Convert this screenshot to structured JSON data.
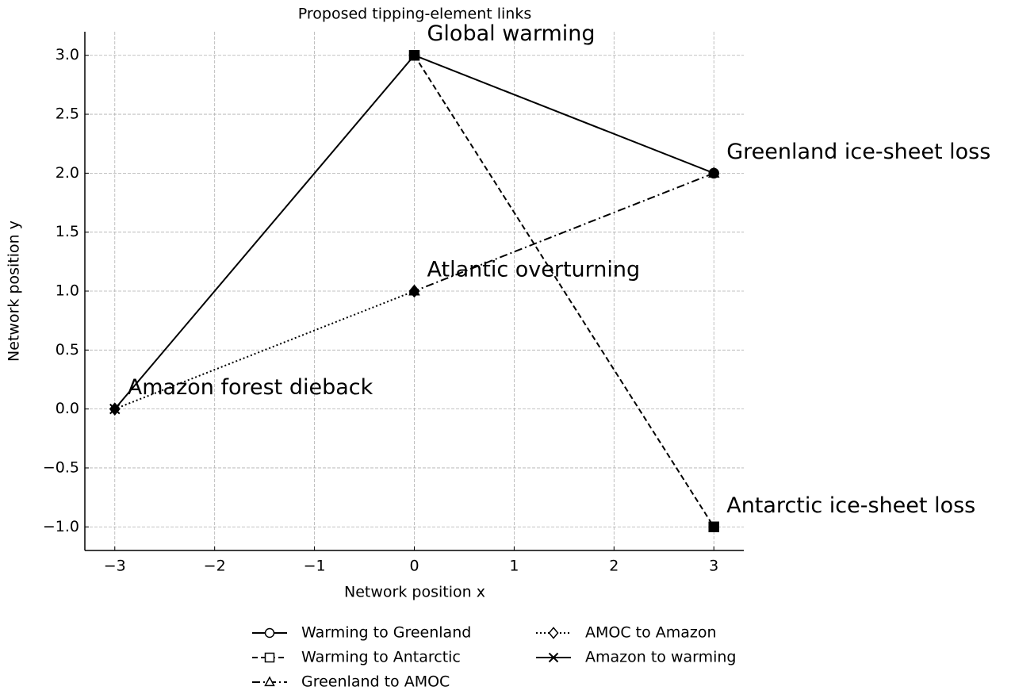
{
  "chart_data": {
    "type": "line",
    "title": "Proposed tipping-element links",
    "x_label": "Network position x",
    "y_label": "Network position y",
    "xlim": [
      -3.3,
      3.3
    ],
    "ylim": [
      -1.2,
      3.2
    ],
    "xticks": [
      {
        "value": -3,
        "label": "−3"
      },
      {
        "value": -2,
        "label": "−2"
      },
      {
        "value": -1,
        "label": "−1"
      },
      0,
      1,
      2,
      3
    ],
    "yticks": [
      {
        "value": -1,
        "label": "−1.0"
      },
      {
        "value": -0.5,
        "label": "−0.5"
      },
      {
        "value": 0,
        "label": "0.0"
      },
      0.5,
      {
        "value": 1,
        "label": "1.0"
      },
      1.5,
      {
        "value": 2,
        "label": "2.0"
      },
      2.5,
      {
        "value": 3,
        "label": "3.0"
      }
    ],
    "grid": true,
    "legend": "bottom",
    "series": [
      {
        "name": "Warming to Greenland",
        "color": "#000000",
        "linestyle": "solid",
        "marker": "o",
        "x": [
          0,
          3
        ],
        "y": [
          3,
          2
        ]
      },
      {
        "name": "Warming to Antarctic",
        "color": "#000000",
        "linestyle": "dashed",
        "marker": "s",
        "x": [
          0,
          3
        ],
        "y": [
          3,
          -1
        ]
      },
      {
        "name": "Greenland to AMOC",
        "color": "#000000",
        "linestyle": "dashdot",
        "marker": "^",
        "x": [
          3,
          0
        ],
        "y": [
          2,
          1
        ]
      },
      {
        "name": "AMOC to Amazon",
        "color": "#000000",
        "linestyle": "dotted",
        "marker": "D",
        "x": [
          0,
          -3
        ],
        "y": [
          1,
          0
        ]
      },
      {
        "name": "Amazon to warming",
        "color": "#000000",
        "linestyle": "solid",
        "marker": "x",
        "x": [
          -3,
          0
        ],
        "y": [
          0,
          3
        ]
      }
    ],
    "nodes": [
      {
        "label": "Global warming",
        "x": 0,
        "y": 3
      },
      {
        "label": "Greenland ice-sheet loss",
        "x": 3,
        "y": 2
      },
      {
        "label": "Atlantic overturning",
        "x": 0,
        "y": 1
      },
      {
        "label": "Amazon forest dieback",
        "x": -3,
        "y": 0
      },
      {
        "label": "Antarctic ice-sheet loss",
        "x": 3,
        "y": -1
      }
    ]
  }
}
